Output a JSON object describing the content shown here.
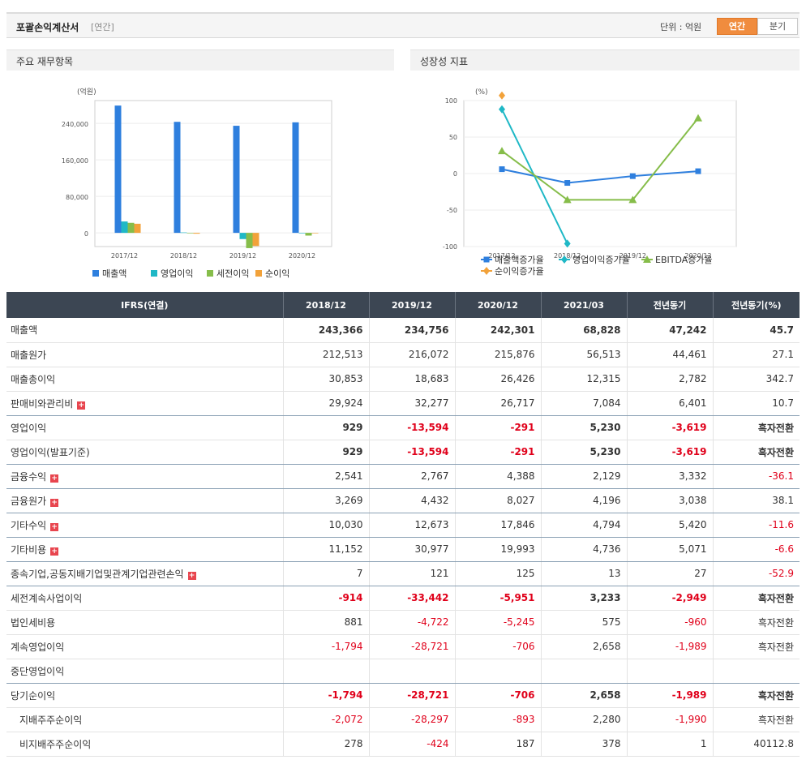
{
  "header": {
    "title": "포괄손익계산서",
    "period_tag": "[연간]",
    "unit_label": "단위 : 억원",
    "toggle_annual": "연간",
    "toggle_quarter": "분기"
  },
  "left_chart": {
    "panel_title": "주요 재무항목",
    "unit": "(억원)",
    "legend": [
      "매출액",
      "영업이익",
      "세전이익",
      "순이익"
    ]
  },
  "right_chart": {
    "panel_title": "성장성 지표",
    "unit": "(%)",
    "legend": [
      "매출액증가율",
      "영업이익증가율",
      "EBITDA증가율",
      "순이익증가율"
    ]
  },
  "chart_data": [
    {
      "type": "bar",
      "title": "주요 재무항목",
      "ylabel": "(억원)",
      "categories": [
        "2017/12",
        "2018/12",
        "2019/12",
        "2020/12"
      ],
      "ylim": [
        -30000,
        290000
      ],
      "yticks": [
        0,
        80000,
        160000,
        240000
      ],
      "ytick_labels": [
        "0",
        "80,000",
        "160,000",
        "240,000"
      ],
      "grid": true,
      "legend_position": "bottom",
      "series": [
        {
          "name": "매출액",
          "color": "#2e7fde",
          "values": [
            279000,
            243366,
            234756,
            242301
          ]
        },
        {
          "name": "영업이익",
          "color": "#1fb8c6",
          "values": [
            25000,
            929,
            -13594,
            -291
          ]
        },
        {
          "name": "세전이익",
          "color": "#86bd4a",
          "values": [
            22000,
            -914,
            -33442,
            -5951
          ]
        },
        {
          "name": "순이익",
          "color": "#f2a23a",
          "values": [
            20000,
            -1794,
            -28721,
            -706
          ]
        }
      ]
    },
    {
      "type": "line",
      "title": "성장성 지표",
      "ylabel": "(%)",
      "categories": [
        "2017/12",
        "2018/12",
        "2019/12",
        "2020/12"
      ],
      "ylim": [
        -100,
        100
      ],
      "yticks": [
        100,
        50,
        0,
        -50,
        -100
      ],
      "grid": true,
      "legend_position": "bottom",
      "series": [
        {
          "name": "매출액증가율",
          "color": "#2e7fde",
          "marker": "square",
          "values": [
            6,
            -12.8,
            -3.5,
            3.2
          ]
        },
        {
          "name": "영업이익증가율",
          "color": "#1fb8c6",
          "marker": "diamond",
          "values": [
            88,
            -96,
            null,
            null
          ]
        },
        {
          "name": "EBITDA증가율",
          "color": "#86bd4a",
          "marker": "triangle",
          "values": [
            31,
            -36,
            -36,
            76
          ]
        },
        {
          "name": "순이익증가율",
          "color": "#f2a23a",
          "marker": "diamond",
          "values": [
            107,
            null,
            null,
            null
          ]
        }
      ]
    }
  ],
  "table": {
    "headers": [
      "IFRS(연결)",
      "2018/12",
      "2019/12",
      "2020/12",
      "2021/03",
      "전년동기",
      "전년동기(%)"
    ],
    "rows": [
      {
        "label": "매출액",
        "values": [
          "243,366",
          "234,756",
          "242,301",
          "68,828",
          "47,242",
          "45.7"
        ]
      },
      {
        "label": "매출원가",
        "values": [
          "212,513",
          "216,072",
          "215,876",
          "56,513",
          "44,461",
          "27.1"
        ]
      },
      {
        "label": "매출총이익",
        "values": [
          "30,853",
          "18,683",
          "26,426",
          "12,315",
          "2,782",
          "342.7"
        ]
      },
      {
        "label": "판매비와관리비",
        "values": [
          "29,924",
          "32,277",
          "26,717",
          "7,084",
          "6,401",
          "10.7"
        ]
      },
      {
        "label": "영업이익",
        "values": [
          "929",
          "-13,594",
          "-291",
          "5,230",
          "-3,619",
          "흑자전환"
        ]
      },
      {
        "label": "영업이익(발표기준)",
        "values": [
          "929",
          "-13,594",
          "-291",
          "5,230",
          "-3,619",
          "흑자전환"
        ]
      },
      {
        "label": "금융수익",
        "values": [
          "2,541",
          "2,767",
          "4,388",
          "2,129",
          "3,332",
          "-36.1"
        ]
      },
      {
        "label": "금융원가",
        "values": [
          "3,269",
          "4,432",
          "8,027",
          "4,196",
          "3,038",
          "38.1"
        ]
      },
      {
        "label": "기타수익",
        "values": [
          "10,030",
          "12,673",
          "17,846",
          "4,794",
          "5,420",
          "-11.6"
        ]
      },
      {
        "label": "기타비용",
        "values": [
          "11,152",
          "30,977",
          "19,993",
          "4,736",
          "5,071",
          "-6.6"
        ]
      },
      {
        "label": "종속기업,공동지배기업및관계기업관련손익",
        "values": [
          "7",
          "121",
          "125",
          "13",
          "27",
          "-52.9"
        ]
      },
      {
        "label": "세전계속사업이익",
        "values": [
          "-914",
          "-33,442",
          "-5,951",
          "3,233",
          "-2,949",
          "흑자전환"
        ]
      },
      {
        "label": "법인세비용",
        "values": [
          "881",
          "-4,722",
          "-5,245",
          "575",
          "-960",
          "흑자전환"
        ]
      },
      {
        "label": "계속영업이익",
        "values": [
          "-1,794",
          "-28,721",
          "-706",
          "2,658",
          "-1,989",
          "흑자전환"
        ]
      },
      {
        "label": "중단영업이익",
        "values": [
          "",
          "",
          "",
          "",
          "",
          ""
        ]
      },
      {
        "label": "당기순이익",
        "values": [
          "-1,794",
          "-28,721",
          "-706",
          "2,658",
          "-1,989",
          "흑자전환"
        ]
      },
      {
        "label": "지배주주순이익",
        "values": [
          "-2,072",
          "-28,297",
          "-893",
          "2,280",
          "-1,990",
          "흑자전환"
        ]
      },
      {
        "label": "비지배주주순이익",
        "values": [
          "278",
          "-424",
          "187",
          "378",
          "1",
          "40112.8"
        ]
      }
    ]
  }
}
